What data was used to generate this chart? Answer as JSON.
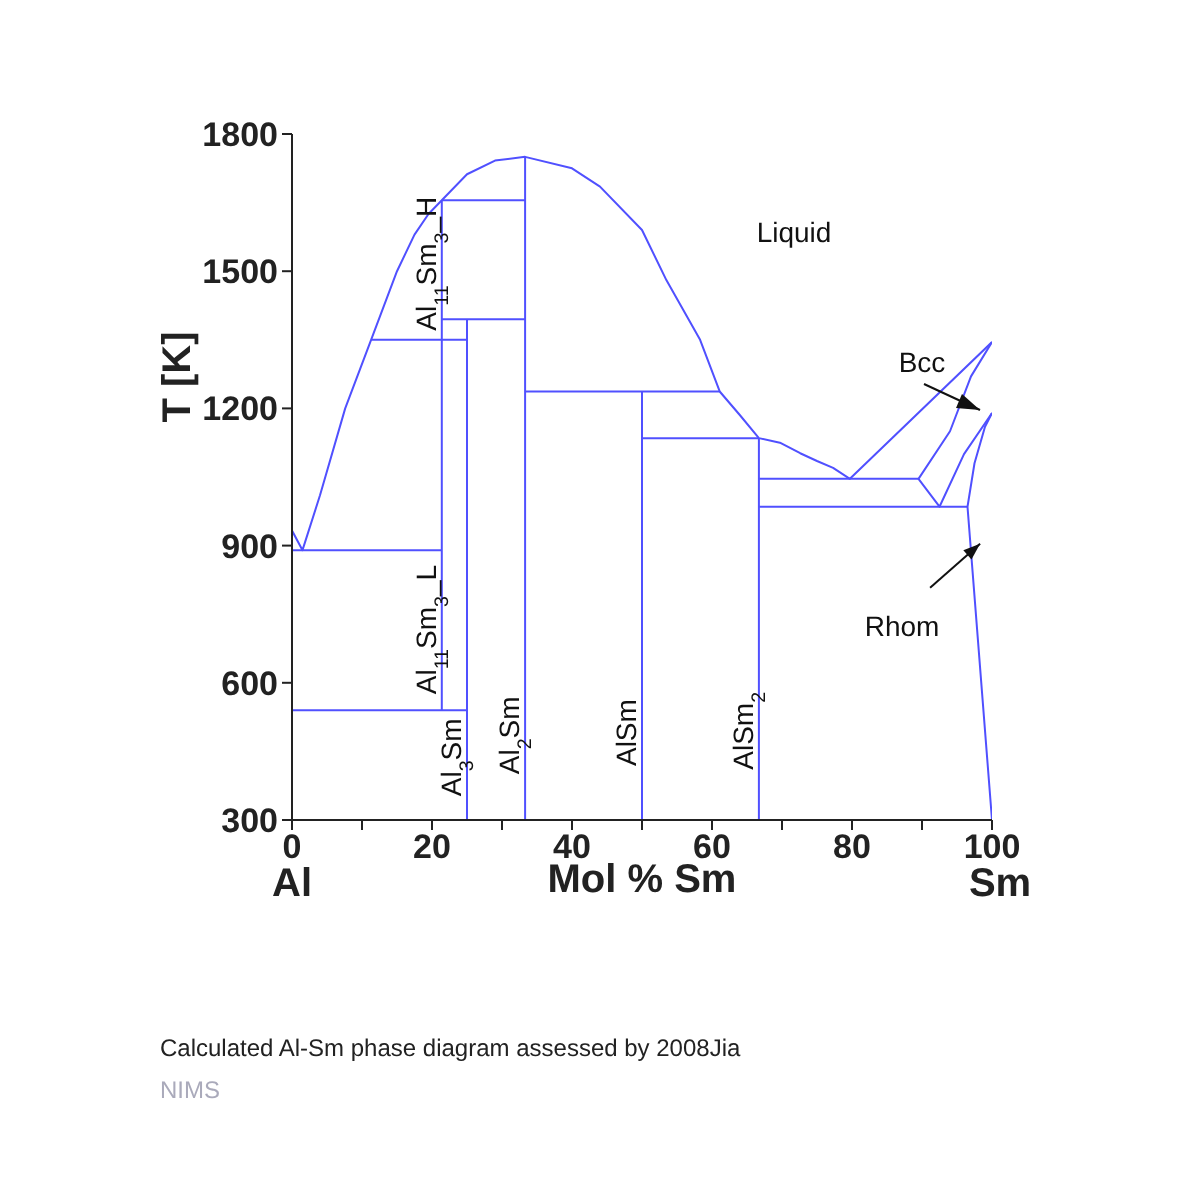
{
  "chart_data": {
    "type": "line",
    "title": "Calculated Al-Sm phase diagram assessed by 2008Jia",
    "xlabel": "Mol % Sm",
    "ylabel": "T [K]",
    "xlim": [
      0,
      100
    ],
    "xticks": [
      0,
      {
        "value": 10,
        "label": null
      },
      20,
      {
        "value": 30,
        "label": null
      },
      40,
      {
        "value": 50,
        "label": null
      },
      60,
      {
        "value": 70,
        "label": null
      },
      80,
      {
        "value": 90,
        "label": null
      },
      100
    ],
    "ylim": [
      300,
      1800
    ],
    "yticks": [
      300,
      600,
      900,
      1200,
      1500,
      1800
    ],
    "grid": false,
    "annotations": [
      "Al",
      "Sm",
      "Liquid",
      "Bcc",
      "NIMS",
      {
        "text": "Al$_{11}$Sm$_{3}$_H",
        "x": 21.4,
        "y": 1370
      },
      {
        "text": "Al$_{11}$Sm$_{3}$_L",
        "x": 21.4,
        "y": 575
      },
      {
        "text": "Al$_{3}$Sm",
        "x": 25,
        "y": 352
      },
      {
        "text": "Al$_{2}$Sm",
        "x": 33.3,
        "y": 400
      },
      {
        "text": "AlSm",
        "x": 50,
        "y": 418
      },
      {
        "text": "AlSm$_{2}$",
        "x": 66.7,
        "y": 410
      },
      {
        "text": "Rhom",
        "x": 98.3,
        "y": 904
      }
    ],
    "series": [
      {
        "color": "#5050ff",
        "x": [
          0,
          1.5,
          4,
          7.6,
          11.3,
          15,
          17.5,
          19.5,
          21.4,
          25,
          29,
          33.3,
          40,
          44,
          50,
          53.5,
          58.3,
          61.1,
          64,
          66.7,
          69.7,
          72.6,
          75,
          77.3,
          79.7,
          100
        ],
        "values": [
          933,
          890,
          1010,
          1200,
          1350,
          1500,
          1580,
          1625,
          1655,
          1712,
          1742,
          1750,
          1725,
          1685,
          1590,
          1480,
          1350,
          1237,
          1185,
          1135,
          1125,
          1102,
          1085,
          1070,
          1046,
          1345
        ]
      },
      {
        "color": "#5050ff",
        "x": [
          0,
          21.4
        ],
        "values": [
          890,
          890
        ]
      },
      {
        "color": "#5050ff",
        "x": [
          11.3,
          25
        ],
        "values": [
          1350,
          1350
        ]
      },
      {
        "color": "#5050ff",
        "x": [
          0,
          25
        ],
        "values": [
          540,
          540
        ]
      },
      {
        "color": "#5050ff",
        "x": [
          21.4,
          21.4
        ],
        "values": [
          540,
          1655
        ]
      },
      {
        "color": "#5050ff",
        "x": [
          21.4,
          33.3
        ],
        "values": [
          1655,
          1655
        ]
      },
      {
        "color": "#5050ff",
        "x": [
          21.4,
          33.3
        ],
        "values": [
          1395,
          1395
        ]
      },
      {
        "color": "#5050ff",
        "x": [
          25,
          25
        ],
        "values": [
          300,
          1395
        ]
      },
      {
        "color": "#5050ff",
        "x": [
          33.3,
          33.3
        ],
        "values": [
          300,
          1750
        ]
      },
      {
        "color": "#5050ff",
        "x": [
          33.3,
          61.1
        ],
        "values": [
          1237,
          1237
        ]
      },
      {
        "color": "#5050ff",
        "x": [
          50,
          50
        ],
        "values": [
          300,
          1237
        ]
      },
      {
        "color": "#5050ff",
        "x": [
          50,
          66.7
        ],
        "values": [
          1135,
          1135
        ]
      },
      {
        "color": "#5050ff",
        "x": [
          66.7,
          66.7
        ],
        "values": [
          300,
          1135
        ]
      },
      {
        "color": "#5050ff",
        "x": [
          66.7,
          89.5
        ],
        "values": [
          1046,
          1046
        ]
      },
      {
        "color": "#5050ff",
        "x": [
          100,
          97,
          94,
          89.5,
          92.5,
          96,
          100
        ],
        "values": [
          1345,
          1270,
          1150,
          1046,
          985,
          1100,
          1190
        ]
      },
      {
        "color": "#5050ff",
        "x": [
          66.7,
          96.5
        ],
        "values": [
          985,
          985
        ]
      },
      {
        "color": "#5050ff",
        "x": [
          100,
          96.5,
          97.5,
          99,
          100
        ],
        "values": [
          300,
          985,
          1080,
          1160,
          1190
        ]
      }
    ]
  }
}
